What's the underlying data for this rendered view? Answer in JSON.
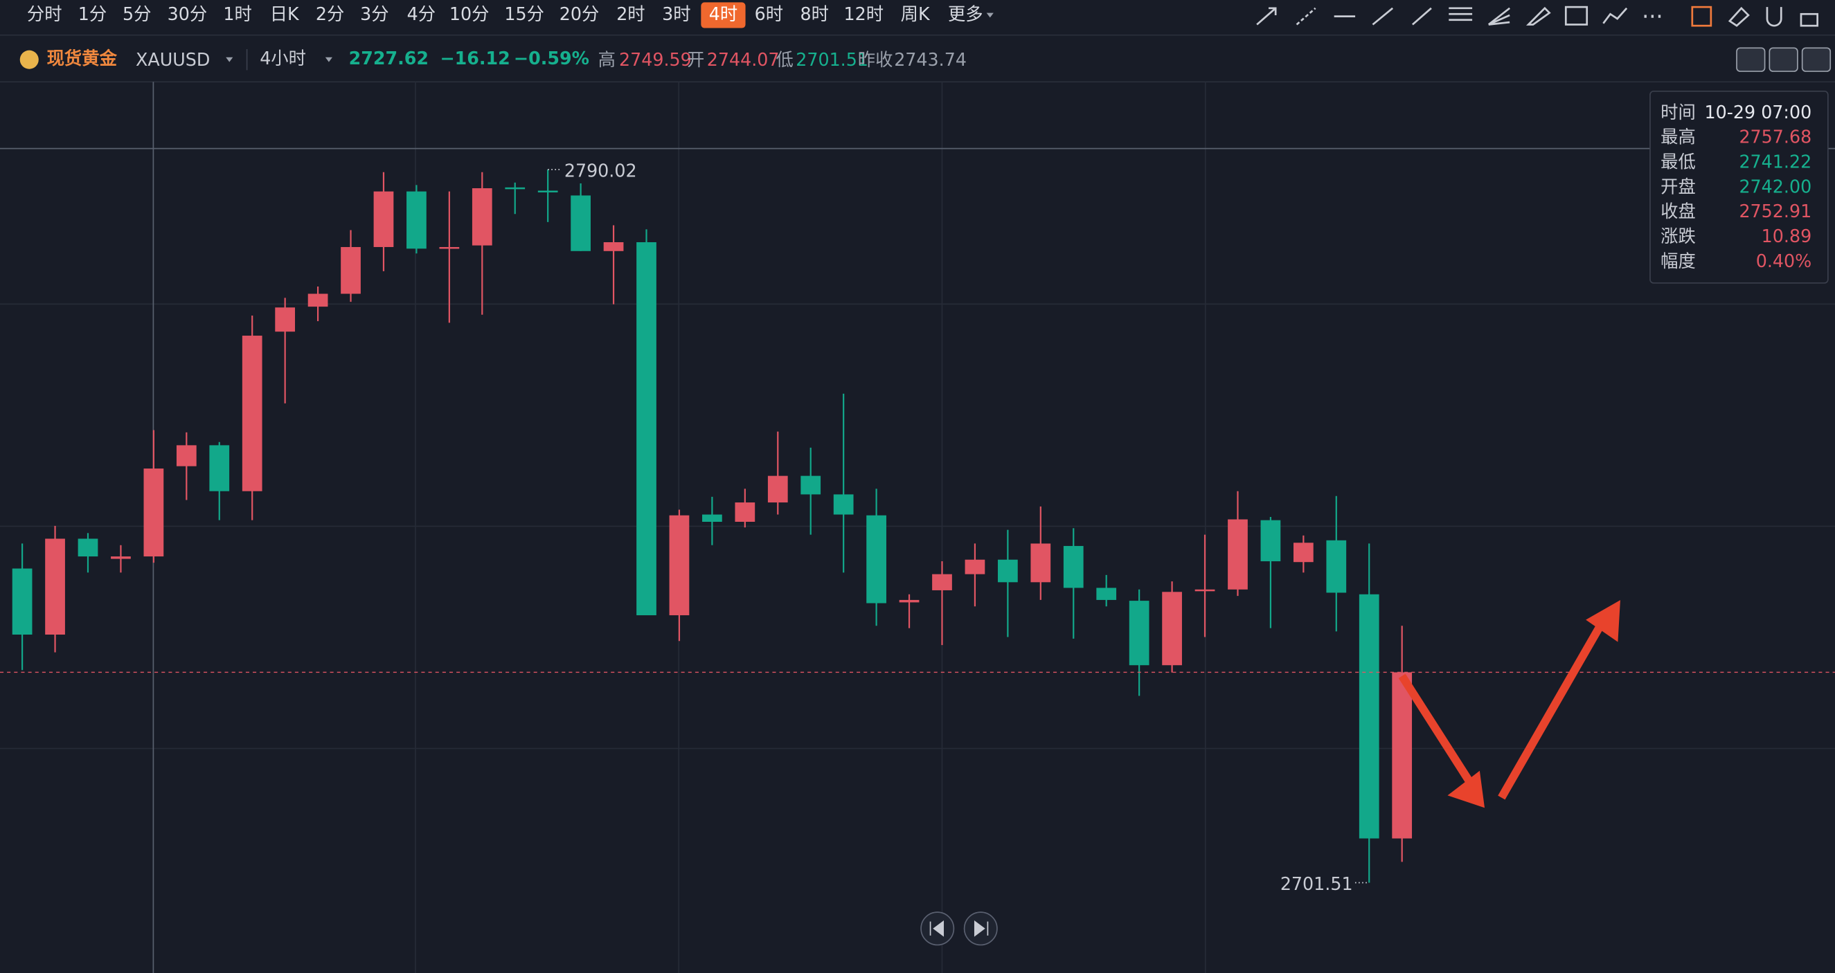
{
  "toolbar": {
    "periods": [
      {
        "label": "分时"
      },
      {
        "label": "1分"
      },
      {
        "label": "5分"
      },
      {
        "label": "30分"
      },
      {
        "label": "1时"
      },
      {
        "label": "日K"
      },
      {
        "label": "2分"
      },
      {
        "label": "3分"
      },
      {
        "label": "4分"
      },
      {
        "label": "10分"
      },
      {
        "label": "15分"
      },
      {
        "label": "20分"
      },
      {
        "label": "2时"
      },
      {
        "label": "3时"
      },
      {
        "label": "4时",
        "active": true
      },
      {
        "label": "6时"
      },
      {
        "label": "8时"
      },
      {
        "label": "12时"
      },
      {
        "label": "周K"
      },
      {
        "label": "更多"
      }
    ]
  },
  "symbol": {
    "name": "现货黄金",
    "code": "XAUUSD",
    "interval": "4小时",
    "price": "2727.62",
    "change": "−16.12",
    "change_pct": "−0.59%",
    "high_label": "高",
    "high": "2749.59",
    "open_label": "开",
    "open": "2744.07",
    "low_label": "低",
    "low": "2701.51",
    "prev_close_label": "昨收",
    "prev_close": "2743.74"
  },
  "tooltip": [
    {
      "label": "时间",
      "value": "10-29 07:00",
      "color": "#e6e8ee"
    },
    {
      "label": "最高",
      "value": "2757.68",
      "color": "#e15563"
    },
    {
      "label": "最低",
      "value": "2741.22",
      "color": "#16b08e"
    },
    {
      "label": "开盘",
      "value": "2742.00",
      "color": "#16b08e"
    },
    {
      "label": "收盘",
      "value": "2752.91",
      "color": "#e15563"
    },
    {
      "label": "涨跌",
      "value": "10.89",
      "color": "#e15563"
    },
    {
      "label": "幅度",
      "value": "0.40%",
      "color": "#e15563"
    }
  ],
  "chart_data": {
    "type": "candlestick",
    "up_color": "#e15563",
    "down_color": "#12a88a",
    "ylim": [
      2690.3,
      2800.9
    ],
    "open": [
      2740.5,
      2732.3,
      2744.2,
      2741.7,
      2742.0,
      2753.2,
      2755.8,
      2750.1,
      2769.9,
      2773.0,
      2774.6,
      2780.4,
      2787.3,
      2780.2,
      2780.6,
      2787.8,
      2787.4,
      2786.8,
      2779.9,
      2781.0,
      2734.7,
      2747.2,
      2746.3,
      2748.7,
      2752.0,
      2749.7,
      2747.1,
      2736.3,
      2737.8,
      2739.8,
      2741.6,
      2738.8,
      2743.3,
      2738.1,
      2736.5,
      2728.5,
      2737.8,
      2737.9,
      2746.5,
      2741.3,
      2744.0,
      2737.3,
      2707.0
    ],
    "high": [
      2743.6,
      2745.8,
      2744.9,
      2743.4,
      2757.68,
      2757.4,
      2756.2,
      2771.9,
      2774.1,
      2775.5,
      2782.5,
      2789.7,
      2788.1,
      2787.3,
      2789.7,
      2788.4,
      2790.02,
      2788.3,
      2783.1,
      2782.6,
      2747.8,
      2749.4,
      2750.4,
      2757.5,
      2755.5,
      2762.2,
      2750.4,
      2737.3,
      2741.4,
      2743.6,
      2745.3,
      2748.2,
      2745.5,
      2739.7,
      2737.9,
      2738.9,
      2744.7,
      2750.1,
      2746.9,
      2744.6,
      2749.5,
      2743.6,
      2733.4
    ],
    "low": [
      2727.9,
      2730.1,
      2740.0,
      2740.0,
      2741.22,
      2749.0,
      2746.5,
      2746.5,
      2761.0,
      2771.2,
      2773.6,
      2777.4,
      2779.6,
      2771.0,
      2772.0,
      2784.5,
      2783.5,
      2779.9,
      2773.3,
      2734.7,
      2731.5,
      2743.4,
      2745.6,
      2747.2,
      2744.7,
      2740.0,
      2733.4,
      2733.1,
      2731.0,
      2735.8,
      2732.0,
      2736.6,
      2731.8,
      2735.8,
      2724.7,
      2727.6,
      2732.0,
      2737.1,
      2733.1,
      2740.0,
      2732.7,
      2701.51,
      2704.1
    ],
    "close": [
      2732.3,
      2744.2,
      2742.0,
      2742.0,
      2752.91,
      2755.8,
      2750.1,
      2769.4,
      2772.9,
      2774.6,
      2780.4,
      2787.3,
      2780.2,
      2780.4,
      2787.7,
      2787.7,
      2787.3,
      2779.9,
      2781.0,
      2734.7,
      2747.1,
      2746.3,
      2748.7,
      2752.0,
      2749.7,
      2747.2,
      2736.2,
      2736.6,
      2739.8,
      2741.6,
      2738.8,
      2743.6,
      2738.1,
      2736.6,
      2728.5,
      2737.6,
      2737.9,
      2746.6,
      2741.4,
      2743.7,
      2737.5,
      2707.0,
      2727.62
    ]
  }
}
